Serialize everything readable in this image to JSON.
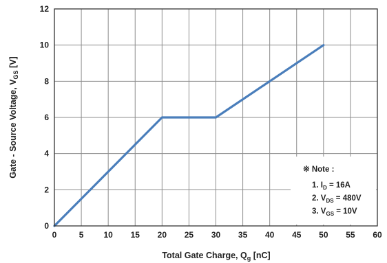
{
  "chart_data": {
    "type": "line",
    "xlabel_main": "Total Gate Charge, Q",
    "xlabel_sub": "g",
    "xlabel_unit": " [nC]",
    "ylabel_main": "Gate - Source Voltage, V",
    "ylabel_sub": "GS",
    "ylabel_unit": " [V]",
    "xlim": [
      0,
      60
    ],
    "ylim": [
      0,
      12
    ],
    "x_ticks": [
      "0",
      "5",
      "10",
      "15",
      "20",
      "25",
      "30",
      "35",
      "40",
      "45",
      "50",
      "55",
      "60"
    ],
    "y_ticks": [
      "0",
      "2",
      "4",
      "6",
      "8",
      "10",
      "12"
    ],
    "grid": true,
    "series": [
      {
        "x": [
          0,
          20,
          30,
          50
        ],
        "y": [
          0,
          6,
          6,
          10
        ],
        "color": "#4a7ebb"
      }
    ],
    "note": {
      "title": "※ Note :",
      "lines": [
        {
          "prefix": "1. I",
          "sub": "D",
          "value": " = 16A"
        },
        {
          "prefix": "2. V",
          "sub": "DS",
          "value": " = 480V"
        },
        {
          "prefix": "3. V",
          "sub": "GS",
          "value": " = 10V"
        }
      ],
      "position": "bottom-right"
    }
  }
}
